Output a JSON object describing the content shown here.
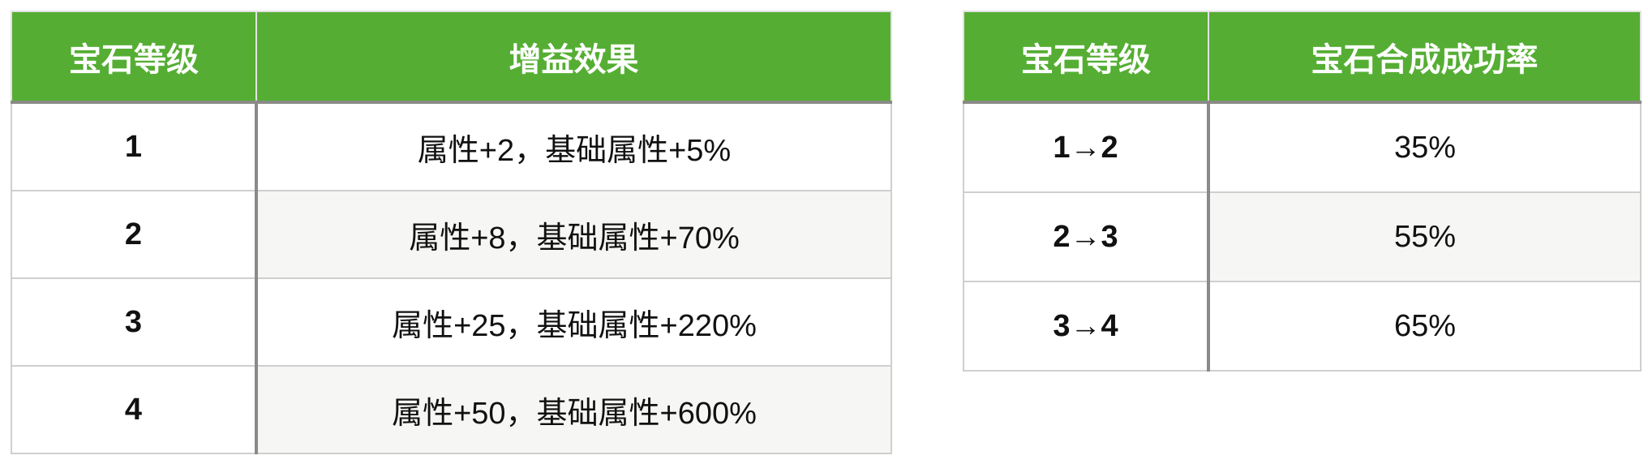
{
  "buff_table": {
    "headers": [
      "宝石等级",
      "增益效果"
    ],
    "rows": [
      {
        "level": "1",
        "effect": "属性+2，基础属性+5%"
      },
      {
        "level": "2",
        "effect": "属性+8，基础属性+70%"
      },
      {
        "level": "3",
        "effect": "属性+25，基础属性+220%"
      },
      {
        "level": "4",
        "effect": "属性+50，基础属性+600%"
      }
    ]
  },
  "synthesis_table": {
    "headers": [
      "宝石等级",
      "宝石合成成功率"
    ],
    "rows": [
      {
        "level": "1→2",
        "rate": "35%"
      },
      {
        "level": "2→3",
        "rate": "55%"
      },
      {
        "level": "3→4",
        "rate": "65%"
      }
    ]
  },
  "colors": {
    "header_bg": "#55ae33",
    "header_text": "#ffffff",
    "alt_row_bg": "#f6f6f4"
  }
}
